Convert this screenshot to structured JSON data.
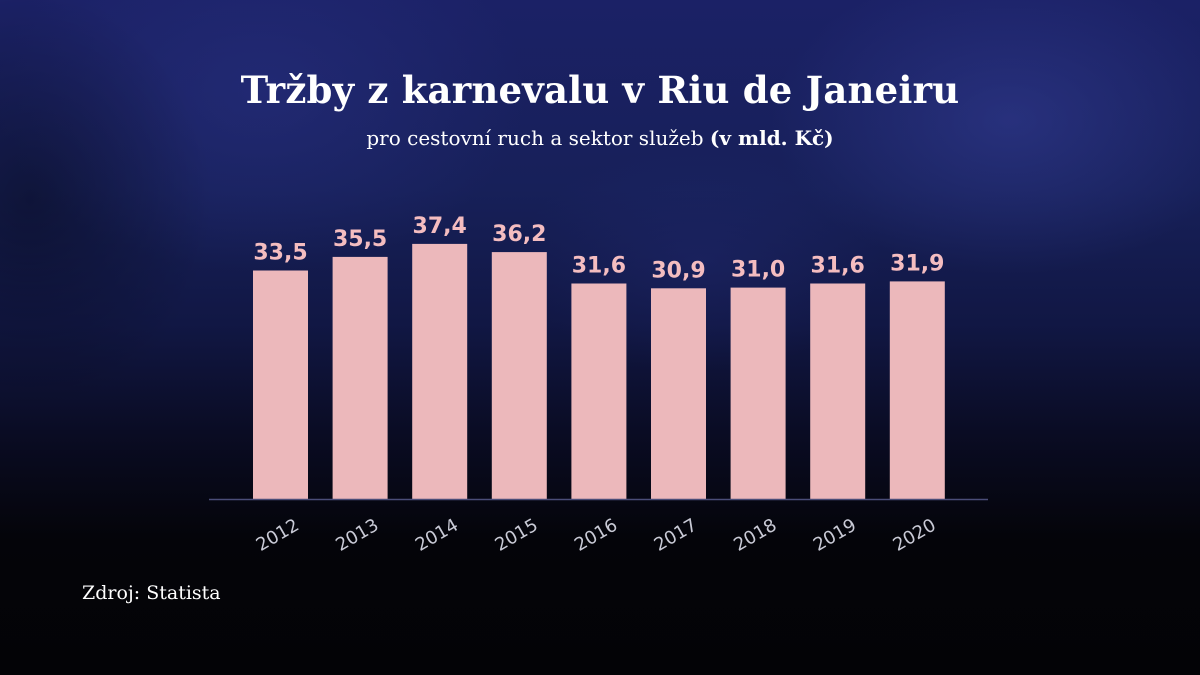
{
  "title": "Tržby z karnevalu v Riu de Janeiru",
  "subtitle": {
    "text": "pro cestovní ruch a sektor služeb",
    "unit": "(v mld. Kč)"
  },
  "source": "Zdroj: Statista",
  "colors": {
    "bar": "#ecb8bb",
    "value_label": "#f4bdc0",
    "tick_label": "#c9cad6",
    "axis": "#4a4d78"
  },
  "chart_data": {
    "type": "bar",
    "title": "Tržby z karnevalu v Riu de Janeiru",
    "subtitle": "pro cestovní ruch a sektor služeb (v mld. Kč)",
    "categories": [
      "2012",
      "2013",
      "2014",
      "2015",
      "2016",
      "2017",
      "2018",
      "2019",
      "2020"
    ],
    "values": [
      33.5,
      35.5,
      37.4,
      36.2,
      31.6,
      30.9,
      31.0,
      31.6,
      31.9
    ],
    "value_labels": [
      "33,5",
      "35,5",
      "37,4",
      "36,2",
      "31,6",
      "30,9",
      "31,0",
      "31,6",
      "31,9"
    ],
    "xlabel": "",
    "ylabel": "",
    "grid": false,
    "legend": false
  }
}
